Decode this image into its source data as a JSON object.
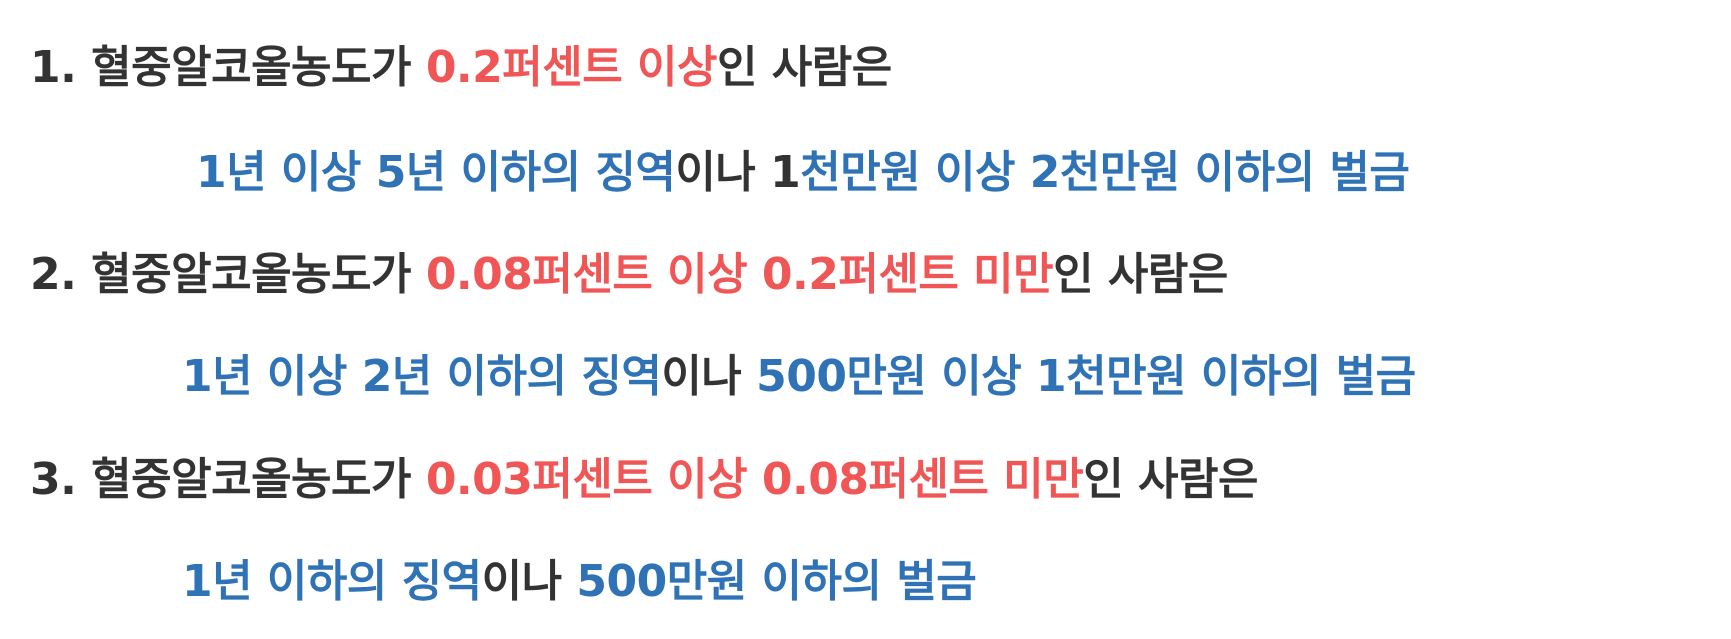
{
  "colors": {
    "text": "#333333",
    "highlight_red": "#f05656",
    "highlight_blue": "#2f72b5"
  },
  "lines": [
    {
      "segments": [
        {
          "text": "1. 혈중알코올농도가 ",
          "style": "dark"
        },
        {
          "text": "0.2퍼센트 이상",
          "style": "red"
        },
        {
          "text": "인 사람은",
          "style": "dark"
        }
      ]
    },
    {
      "segments": [
        {
          "text": "1년 이상 5년 이하의 징역",
          "style": "blue"
        },
        {
          "text": "이나 1",
          "style": "dark"
        },
        {
          "text": "천만원 이상 2천만원 이하의 벌금",
          "style": "blue"
        }
      ]
    },
    {
      "segments": [
        {
          "text": "2. 혈중알코올농도가 ",
          "style": "dark"
        },
        {
          "text": "0.08퍼센트 이상 0.2퍼센트 미만",
          "style": "red"
        },
        {
          "text": "인 사람은",
          "style": "dark"
        }
      ]
    },
    {
      "segments": [
        {
          "text": "1년 이상 2년 이하의 징역",
          "style": "blue"
        },
        {
          "text": "이나 ",
          "style": "dark"
        },
        {
          "text": "500만원 이상 1천만원 이하의 벌금",
          "style": "blue"
        }
      ]
    },
    {
      "segments": [
        {
          "text": "3. 혈중알코올농도가 ",
          "style": "dark"
        },
        {
          "text": "0.03퍼센트 이상 0.08퍼센트 미만",
          "style": "red"
        },
        {
          "text": "인 사람은",
          "style": "dark"
        }
      ]
    },
    {
      "segments": [
        {
          "text": "1년 이하의 징역",
          "style": "blue"
        },
        {
          "text": "이나 ",
          "style": "dark"
        },
        {
          "text": "500만원 이하의 벌금",
          "style": "blue"
        }
      ]
    }
  ]
}
